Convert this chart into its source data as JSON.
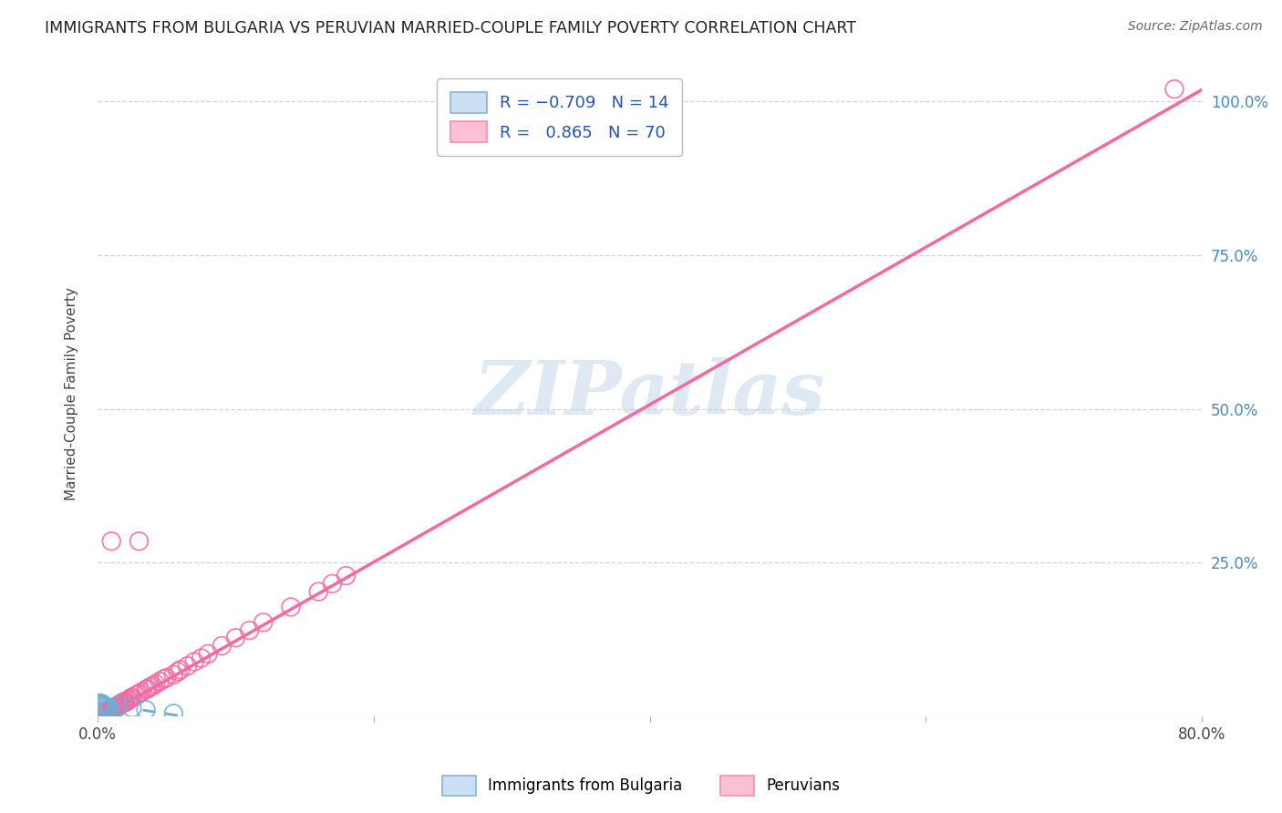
{
  "title": "IMMIGRANTS FROM BULGARIA VS PERUVIAN MARRIED-COUPLE FAMILY POVERTY CORRELATION CHART",
  "source": "Source: ZipAtlas.com",
  "ylabel": "Married-Couple Family Poverty",
  "xlim": [
    0,
    0.8
  ],
  "ylim": [
    0,
    1.05
  ],
  "xticks": [
    0.0,
    0.2,
    0.4,
    0.6,
    0.8
  ],
  "xtick_labels": [
    "0.0%",
    "",
    "",
    "",
    "80.0%"
  ],
  "ytick_labels_right": [
    "",
    "25.0%",
    "50.0%",
    "75.0%",
    "100.0%"
  ],
  "yticks_right": [
    0.0,
    0.25,
    0.5,
    0.75,
    1.0
  ],
  "watermark": "ZIPatlas",
  "bg_color": "#ffffff",
  "grid_color": "#c8c8c8",
  "bulgaria_color": "#6baed6",
  "peruvian_color": "#f768a1",
  "title_color": "#222222",
  "axis_label_color": "#444444",
  "right_tick_color": "#4488cc",
  "bottom_tick_color": "#444444",
  "peru_regression_slope": 1.28,
  "peru_regression_intercept": -0.005,
  "bulg_regression_slope": -0.35,
  "bulg_regression_intercept": 0.022,
  "bulg_x_line_end": 0.065,
  "peru_scatter_x": [
    0.002,
    0.003,
    0.003,
    0.004,
    0.004,
    0.005,
    0.005,
    0.005,
    0.006,
    0.006,
    0.007,
    0.007,
    0.008,
    0.008,
    0.009,
    0.009,
    0.01,
    0.01,
    0.01,
    0.011,
    0.011,
    0.012,
    0.012,
    0.013,
    0.013,
    0.014,
    0.015,
    0.015,
    0.016,
    0.016,
    0.017,
    0.018,
    0.019,
    0.02,
    0.02,
    0.022,
    0.023,
    0.024,
    0.025,
    0.028,
    0.03,
    0.032,
    0.035,
    0.036,
    0.038,
    0.04,
    0.042,
    0.045,
    0.048,
    0.05,
    0.055,
    0.058,
    0.06,
    0.065,
    0.07,
    0.075,
    0.08,
    0.09,
    0.1,
    0.11,
    0.12,
    0.14,
    0.16,
    0.17,
    0.18,
    0.01,
    0.03,
    0.0,
    0.001,
    0.78
  ],
  "peru_scatter_y": [
    0.001,
    0.002,
    0.003,
    0.002,
    0.004,
    0.004,
    0.003,
    0.005,
    0.005,
    0.006,
    0.007,
    0.006,
    0.008,
    0.009,
    0.01,
    0.008,
    0.011,
    0.012,
    0.01,
    0.013,
    0.012,
    0.014,
    0.015,
    0.016,
    0.013,
    0.017,
    0.017,
    0.016,
    0.019,
    0.02,
    0.021,
    0.022,
    0.024,
    0.024,
    0.023,
    0.026,
    0.028,
    0.03,
    0.031,
    0.035,
    0.037,
    0.04,
    0.044,
    0.045,
    0.048,
    0.05,
    0.053,
    0.057,
    0.061,
    0.063,
    0.068,
    0.073,
    0.076,
    0.082,
    0.089,
    0.095,
    0.102,
    0.115,
    0.128,
    0.14,
    0.153,
    0.178,
    0.203,
    0.216,
    0.229,
    0.285,
    0.285,
    0.0,
    0.001,
    1.02
  ],
  "bulg_scatter_x": [
    0.001,
    0.002,
    0.003,
    0.003,
    0.004,
    0.005,
    0.006,
    0.007,
    0.008,
    0.009,
    0.015,
    0.025,
    0.035,
    0.055
  ],
  "bulg_scatter_y": [
    0.022,
    0.02,
    0.019,
    0.021,
    0.018,
    0.017,
    0.016,
    0.015,
    0.014,
    0.013,
    0.017,
    0.014,
    0.011,
    0.005
  ]
}
